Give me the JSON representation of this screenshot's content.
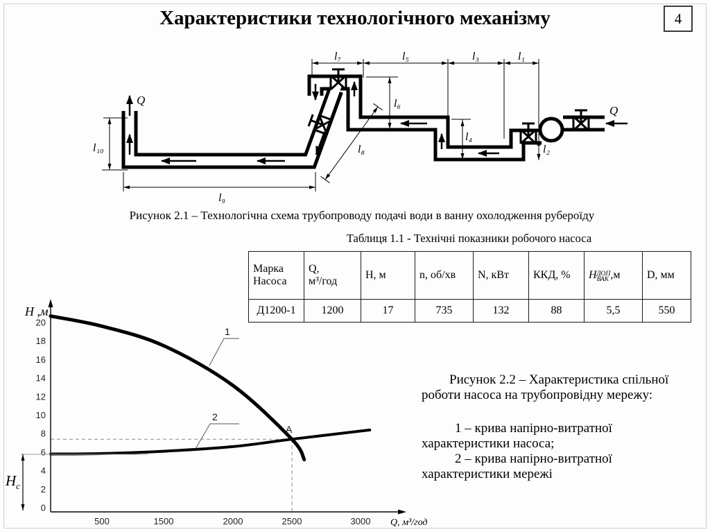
{
  "page": {
    "title": "Характеристики технологічного механізму",
    "page_number": "4"
  },
  "figure1": {
    "caption": "Рисунок 2.1 – Технологічна схема трубопроводу подачі води в ванну охолодження рубероїду",
    "q_in": "Q",
    "q_out": "Q",
    "dims": {
      "l1": "l₁",
      "l2": "l₂",
      "l3": "l₃",
      "l4": "l₄",
      "l5": "l₅",
      "l6": "l₆",
      "l7": "l₇",
      "l8": "l₈",
      "l9": "l₉",
      "l10": "l₁₀"
    }
  },
  "table": {
    "caption": "Таблиця 1.1 - Технічні показники робочого насоса",
    "headers": [
      {
        "l1": "Марка",
        "l2": "Насоса"
      },
      {
        "l1": "Q,",
        "l2": "м³/год"
      },
      {
        "l1": "Н, м"
      },
      {
        "l1": "n, об/хв"
      },
      {
        "l1": "N, кВт"
      },
      {
        "l1": "ККД, %"
      },
      {
        "base": "Н",
        "sup": "ДОП",
        "sub": "ВАК",
        "unit": ",м"
      },
      {
        "l1": "D, мм"
      }
    ],
    "row": [
      "Д1200-1",
      "1200",
      "17",
      "735",
      "132",
      "88",
      "5,5",
      "550"
    ]
  },
  "chart_data": {
    "type": "line",
    "title": "",
    "xlabel": "Q, м³/год",
    "ylabel": "Н ,м",
    "x_ticks": [
      500,
      1500,
      2000,
      2500,
      3000
    ],
    "y_ticks": [
      0,
      2,
      4,
      6,
      8,
      10,
      12,
      14,
      16,
      18,
      20
    ],
    "ylim": [
      0,
      21
    ],
    "grid": false,
    "legend_position": "none",
    "series": [
      {
        "label": "1",
        "description": "крива напірно-витратної характеристики насоса",
        "points": [
          [
            0,
            20.7
          ],
          [
            500,
            19.6
          ],
          [
            1500,
            17.5
          ],
          [
            2000,
            13.2
          ],
          [
            2500,
            7.4
          ],
          [
            2590,
            5.2
          ]
        ]
      },
      {
        "label": "2",
        "description": "крива напірно-витратної характеристики мережі",
        "points": [
          [
            0,
            5.8
          ],
          [
            500,
            5.85
          ],
          [
            1500,
            6.1
          ],
          [
            2000,
            6.6
          ],
          [
            2500,
            7.4
          ],
          [
            3100,
            8.4
          ]
        ]
      }
    ],
    "operating_point": {
      "label": "A",
      "q": 2500,
      "h": 7.4
    },
    "static_head": {
      "sym": "Н",
      "sub": "с"
    }
  },
  "figure2": {
    "lines": [
      {
        "text": "Рисунок 2.2 – Характеристика спільної"
      },
      {
        "text": "роботи насоса на трубопровідну мережу:"
      },
      {
        "text": "1 – крива напірно-витратної"
      },
      {
        "text": "характеристики насоса;"
      },
      {
        "text": "2 – крива напірно-витратної"
      },
      {
        "text": "характеристики мережі"
      }
    ]
  }
}
